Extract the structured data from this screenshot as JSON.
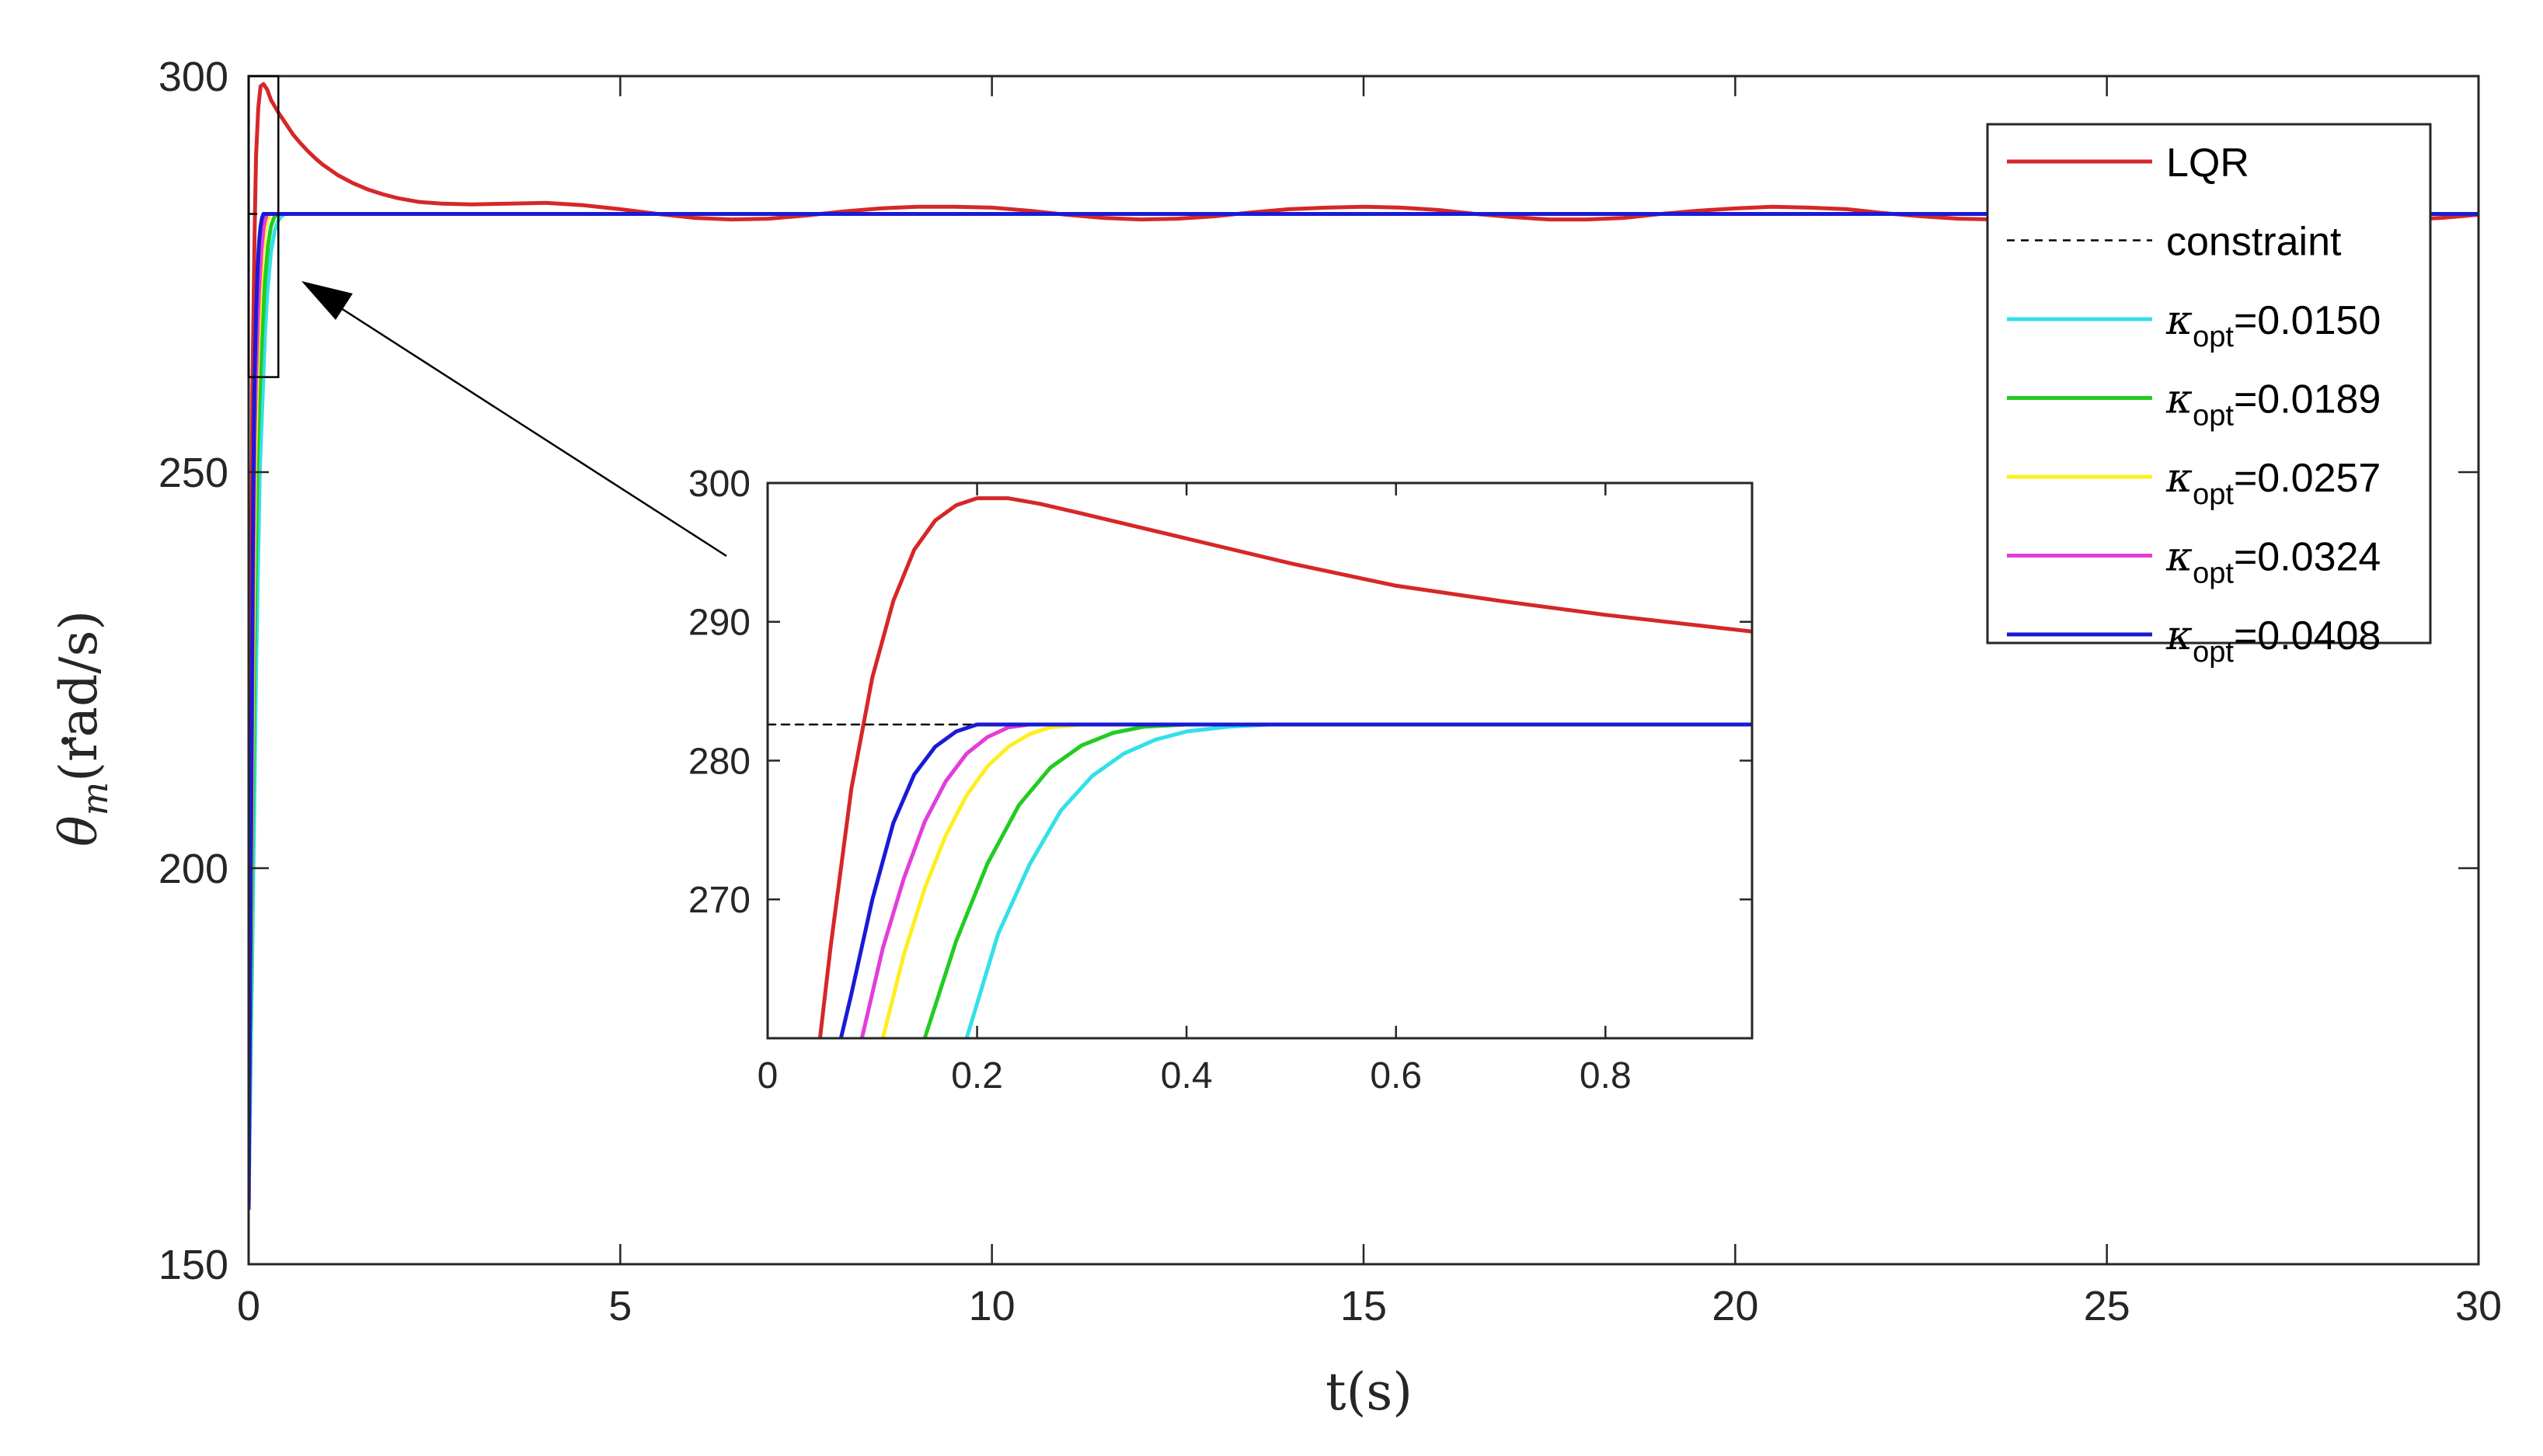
{
  "chart_data": [
    {
      "id": "main",
      "type": "line",
      "xlabel": "t(s)",
      "ylabel_parts": {
        "symbol": "θ",
        "subscript": "m",
        "unit": "(rad/s)"
      },
      "xlim": [
        0,
        30
      ],
      "ylim": [
        150,
        300
      ],
      "xticks": [
        0,
        5,
        10,
        15,
        20,
        25,
        30
      ],
      "yticks": [
        150,
        200,
        250,
        300
      ],
      "grid": false,
      "legend_position": "top-right",
      "legend": [
        {
          "label": "LQR",
          "series": "LQR"
        },
        {
          "label": "constraint",
          "series": "constraint"
        },
        {
          "label_prefix": "κ",
          "label_sub": "opt",
          "label_value": "=0.0150",
          "series": "k0150"
        },
        {
          "label_prefix": "κ",
          "label_sub": "opt",
          "label_value": "=0.0189",
          "series": "k0189"
        },
        {
          "label_prefix": "κ",
          "label_sub": "opt",
          "label_value": "=0.0257",
          "series": "k0257"
        },
        {
          "label_prefix": "κ",
          "label_sub": "opt",
          "label_value": "=0.0324",
          "series": "k0324"
        },
        {
          "label_prefix": "κ",
          "label_sub": "opt",
          "label_value": "=0.0408",
          "series": "k0408"
        }
      ],
      "zoom_box": {
        "x": [
          0,
          0.4
        ],
        "y": [
          262,
          300
        ]
      },
      "series": [
        {
          "name": "LQR",
          "color": "#d62728",
          "dash": false,
          "x": [
            0,
            0.02,
            0.05,
            0.08,
            0.1,
            0.13,
            0.16,
            0.2,
            0.25,
            0.3,
            0.4,
            0.5,
            0.6,
            0.7,
            0.8,
            0.9,
            1.0,
            1.2,
            1.4,
            1.6,
            1.8,
            2.0,
            2.3,
            2.6,
            3.0,
            3.5,
            4.0,
            4.5,
            5.0,
            5.5,
            6.0,
            6.5,
            7.0,
            7.5,
            8.0,
            8.5,
            9.0,
            9.5,
            10.0,
            10.5,
            11.0,
            11.5,
            12.0,
            12.5,
            13.0,
            13.5,
            14.0,
            14.5,
            15.0,
            15.5,
            16.0,
            16.5,
            17.0,
            17.5,
            18.0,
            18.5,
            19.0,
            19.5,
            20.0,
            20.5,
            21.0,
            21.5,
            22.0,
            22.5,
            23.0,
            23.5,
            24.0,
            24.5,
            25.0,
            25.5,
            26.0,
            26.5,
            27.0,
            27.5,
            28.0,
            28.5,
            29.0,
            29.5,
            30.0
          ],
          "y": [
            157,
            205,
            260,
            280,
            290,
            296,
            298.7,
            299,
            298.3,
            297,
            295.4,
            294.0,
            292.6,
            291.5,
            290.5,
            289.6,
            288.8,
            287.5,
            286.5,
            285.7,
            285.1,
            284.6,
            284.1,
            283.9,
            283.8,
            283.9,
            284.0,
            283.7,
            283.2,
            282.6,
            282.1,
            281.9,
            282.0,
            282.4,
            282.9,
            283.3,
            283.5,
            283.5,
            283.4,
            283.0,
            282.5,
            282.1,
            281.9,
            282.0,
            282.3,
            282.8,
            283.2,
            283.4,
            283.5,
            283.4,
            283.1,
            282.6,
            282.2,
            281.9,
            281.9,
            282.1,
            282.6,
            283.0,
            283.3,
            283.5,
            283.4,
            283.2,
            282.7,
            282.3,
            282.0,
            281.9,
            282.0,
            282.4,
            282.9,
            283.3,
            283.5,
            283.5,
            283.3,
            282.9,
            282.4,
            282.0,
            281.9,
            282.1,
            282.5
          ]
        },
        {
          "name": "constraint",
          "color": "#000000",
          "dash": true,
          "x": [
            0,
            30
          ],
          "y": [
            282.6,
            282.6
          ]
        },
        {
          "name": "k0150",
          "color": "#33e0e8",
          "dash": false,
          "x": [
            0,
            0.05,
            0.1,
            0.15,
            0.19,
            0.22,
            0.25,
            0.3,
            0.35,
            0.4,
            0.45,
            0.5,
            30
          ],
          "y": [
            157,
            190,
            225,
            250,
            260,
            267.5,
            272.5,
            277.8,
            280.4,
            281.8,
            282.4,
            282.6,
            282.6
          ]
        },
        {
          "name": "k0189",
          "color": "#22cc22",
          "dash": false,
          "x": [
            0,
            0.04,
            0.08,
            0.12,
            0.15,
            0.18,
            0.22,
            0.26,
            0.3,
            0.34,
            0.38,
            0.4,
            30
          ],
          "y": [
            157,
            195,
            228,
            253,
            260,
            267,
            274.2,
            278.6,
            281.0,
            282.1,
            282.5,
            282.6,
            282.6
          ]
        },
        {
          "name": "k0257",
          "color": "#ffee22",
          "dash": false,
          "x": [
            0,
            0.03,
            0.06,
            0.09,
            0.11,
            0.13,
            0.16,
            0.19,
            0.22,
            0.25,
            0.28,
            0.3,
            30
          ],
          "y": [
            157,
            192,
            225,
            252,
            260,
            266,
            273.0,
            277.6,
            280.4,
            281.8,
            282.4,
            282.6,
            282.6
          ]
        },
        {
          "name": "k0324",
          "color": "#e23ddb",
          "dash": false,
          "x": [
            0,
            0.03,
            0.06,
            0.08,
            0.1,
            0.12,
            0.14,
            0.17,
            0.2,
            0.22,
            0.24,
            0.25,
            30
          ],
          "y": [
            157,
            198,
            236,
            254,
            262,
            268,
            272.8,
            277.8,
            280.8,
            281.8,
            282.4,
            282.6,
            282.6
          ]
        },
        {
          "name": "k0408",
          "color": "#1a1ad6",
          "dash": false,
          "x": [
            0,
            0.02,
            0.04,
            0.06,
            0.07,
            0.08,
            0.1,
            0.12,
            0.14,
            0.16,
            0.18,
            0.2,
            30
          ],
          "y": [
            157,
            185,
            215,
            245,
            255,
            262,
            270,
            275.5,
            279.0,
            281.0,
            282.1,
            282.6,
            282.6
          ]
        }
      ]
    },
    {
      "id": "inset",
      "type": "line",
      "xlabel": "",
      "ylabel": "",
      "xlim": [
        0,
        0.94
      ],
      "ylim": [
        260,
        300
      ],
      "xticks": [
        0,
        0.2,
        0.4,
        0.6,
        0.8
      ],
      "xtick_labels": [
        "0",
        "0.2",
        "0.4",
        "0.6",
        "0.8"
      ],
      "yticks": [
        270,
        280,
        290,
        300
      ],
      "grid": false,
      "series": [
        {
          "name": "LQR",
          "color": "#d62728",
          "dash": false,
          "x": [
            0.05,
            0.06,
            0.08,
            0.1,
            0.12,
            0.14,
            0.16,
            0.18,
            0.2,
            0.23,
            0.26,
            0.3,
            0.35,
            0.4,
            0.5,
            0.6,
            0.7,
            0.8,
            0.94
          ],
          "y": [
            260,
            266.5,
            278,
            286,
            291.5,
            295.2,
            297.3,
            298.4,
            298.9,
            298.9,
            298.5,
            297.8,
            296.9,
            296.0,
            294.2,
            292.6,
            291.5,
            290.5,
            289.3
          ]
        },
        {
          "name": "constraint",
          "color": "#000000",
          "dash": true,
          "x": [
            0,
            0.94
          ],
          "y": [
            282.6,
            282.6
          ]
        },
        {
          "name": "k0150",
          "color": "#33e0e8",
          "dash": false,
          "x": [
            0.19,
            0.22,
            0.25,
            0.28,
            0.31,
            0.34,
            0.37,
            0.4,
            0.44,
            0.48,
            0.5,
            0.94
          ],
          "y": [
            260,
            267.5,
            272.5,
            276.4,
            278.9,
            280.5,
            281.5,
            282.1,
            282.45,
            282.6,
            282.6,
            282.6
          ]
        },
        {
          "name": "k0189",
          "color": "#22cc22",
          "dash": false,
          "x": [
            0.15,
            0.18,
            0.21,
            0.24,
            0.27,
            0.3,
            0.33,
            0.36,
            0.4,
            0.94
          ],
          "y": [
            260,
            267,
            272.6,
            276.8,
            279.5,
            281.1,
            282.0,
            282.45,
            282.6,
            282.6
          ]
        },
        {
          "name": "k0257",
          "color": "#ffee22",
          "dash": false,
          "x": [
            0.11,
            0.13,
            0.15,
            0.17,
            0.19,
            0.21,
            0.23,
            0.25,
            0.27,
            0.3,
            0.94
          ],
          "y": [
            260,
            266,
            270.8,
            274.6,
            277.5,
            279.6,
            281.0,
            281.9,
            282.4,
            282.6,
            282.6
          ]
        },
        {
          "name": "k0324",
          "color": "#e23ddb",
          "dash": false,
          "x": [
            0.09,
            0.11,
            0.13,
            0.15,
            0.17,
            0.19,
            0.21,
            0.23,
            0.25,
            0.94
          ],
          "y": [
            260,
            266.5,
            271.5,
            275.6,
            278.5,
            280.5,
            281.7,
            282.4,
            282.6,
            282.6
          ]
        },
        {
          "name": "k0408",
          "color": "#1a1ad6",
          "dash": false,
          "x": [
            0.07,
            0.08,
            0.1,
            0.12,
            0.14,
            0.16,
            0.18,
            0.2,
            0.94
          ],
          "y": [
            260,
            263.2,
            270,
            275.5,
            279.0,
            281.0,
            282.1,
            282.6,
            282.6
          ]
        }
      ]
    }
  ]
}
